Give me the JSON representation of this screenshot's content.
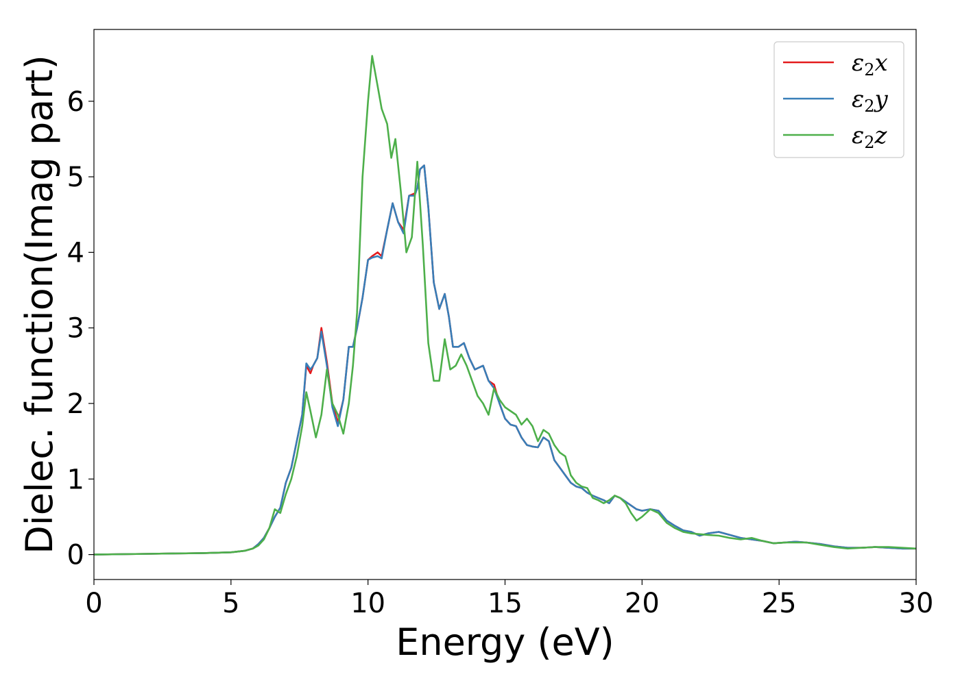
{
  "chart_data": {
    "type": "line",
    "title": "",
    "xlabel": "Energy (eV)",
    "ylabel": "Dielec. function(Imag part)",
    "xlim": [
      0,
      30
    ],
    "ylim": [
      -0.33,
      6.95
    ],
    "xticks": [
      0,
      5,
      10,
      15,
      20,
      25,
      30
    ],
    "yticks": [
      0,
      1,
      2,
      3,
      4,
      5,
      6
    ],
    "grid": false,
    "legend_position": "top-right",
    "series": [
      {
        "name": "ε2x",
        "legend_base": "ε",
        "legend_sub": "2",
        "legend_suffix": "x",
        "color": "#e41a1c",
        "x": [
          0,
          2,
          4,
          5,
          5.5,
          5.8,
          6.0,
          6.2,
          6.4,
          6.6,
          6.8,
          7.0,
          7.2,
          7.4,
          7.6,
          7.75,
          7.9,
          8.0,
          8.15,
          8.3,
          8.5,
          8.7,
          8.9,
          9.1,
          9.3,
          9.45,
          9.6,
          9.8,
          10.0,
          10.15,
          10.35,
          10.5,
          10.7,
          10.9,
          11.1,
          11.3,
          11.5,
          11.7,
          11.8,
          11.9,
          12.05,
          12.2,
          12.4,
          12.6,
          12.8,
          12.95,
          13.1,
          13.3,
          13.5,
          13.7,
          13.9,
          14.2,
          14.4,
          14.6,
          14.8,
          15.0,
          15.2,
          15.4,
          15.6,
          15.8,
          16.0,
          16.2,
          16.4,
          16.6,
          16.8,
          17.0,
          17.2,
          17.4,
          17.6,
          17.8,
          18.0,
          18.2,
          18.4,
          18.6,
          18.8,
          19.0,
          19.2,
          19.4,
          19.6,
          19.8,
          20.0,
          20.3,
          20.6,
          20.9,
          21.2,
          21.5,
          21.8,
          22.1,
          22.4,
          22.8,
          23.2,
          23.6,
          24.0,
          24.4,
          24.8,
          25.2,
          25.6,
          26.0,
          26.5,
          27.0,
          27.5,
          28.0,
          28.5,
          29.0,
          29.5,
          30
        ],
        "y": [
          0.0,
          0.01,
          0.02,
          0.03,
          0.05,
          0.08,
          0.14,
          0.22,
          0.35,
          0.5,
          0.62,
          0.95,
          1.15,
          1.5,
          1.85,
          2.5,
          2.4,
          2.5,
          2.6,
          3.0,
          2.55,
          2.0,
          1.75,
          2.05,
          2.75,
          2.75,
          3.0,
          3.4,
          3.9,
          3.95,
          4.0,
          3.95,
          4.3,
          4.65,
          4.4,
          4.3,
          4.75,
          4.78,
          4.85,
          5.1,
          5.15,
          4.6,
          3.6,
          3.25,
          3.45,
          3.15,
          2.75,
          2.75,
          2.8,
          2.6,
          2.45,
          2.5,
          2.3,
          2.25,
          2.0,
          1.8,
          1.72,
          1.7,
          1.55,
          1.45,
          1.43,
          1.42,
          1.55,
          1.5,
          1.25,
          1.15,
          1.05,
          0.95,
          0.9,
          0.88,
          0.82,
          0.78,
          0.75,
          0.72,
          0.68,
          0.78,
          0.75,
          0.7,
          0.65,
          0.6,
          0.58,
          0.6,
          0.58,
          0.45,
          0.38,
          0.32,
          0.3,
          0.25,
          0.28,
          0.3,
          0.26,
          0.22,
          0.2,
          0.18,
          0.15,
          0.16,
          0.17,
          0.16,
          0.14,
          0.11,
          0.09,
          0.09,
          0.1,
          0.09,
          0.08,
          0.08
        ]
      },
      {
        "name": "ε2y",
        "legend_base": "ε",
        "legend_sub": "2",
        "legend_suffix": "y",
        "color": "#377eb8",
        "x": [
          0,
          2,
          4,
          5,
          5.5,
          5.8,
          6.0,
          6.2,
          6.4,
          6.6,
          6.8,
          7.0,
          7.2,
          7.4,
          7.6,
          7.75,
          7.9,
          8.0,
          8.15,
          8.3,
          8.5,
          8.7,
          8.9,
          9.1,
          9.3,
          9.45,
          9.6,
          9.8,
          10.0,
          10.15,
          10.35,
          10.5,
          10.7,
          10.9,
          11.1,
          11.3,
          11.5,
          11.7,
          11.8,
          11.9,
          12.05,
          12.2,
          12.4,
          12.6,
          12.8,
          12.95,
          13.1,
          13.3,
          13.5,
          13.7,
          13.9,
          14.2,
          14.4,
          14.6,
          14.8,
          15.0,
          15.2,
          15.4,
          15.6,
          15.8,
          16.0,
          16.2,
          16.4,
          16.6,
          16.8,
          17.0,
          17.2,
          17.4,
          17.6,
          17.8,
          18.0,
          18.2,
          18.4,
          18.6,
          18.8,
          19.0,
          19.2,
          19.4,
          19.6,
          19.8,
          20.0,
          20.3,
          20.6,
          20.9,
          21.2,
          21.5,
          21.8,
          22.1,
          22.4,
          22.8,
          23.2,
          23.6,
          24.0,
          24.4,
          24.8,
          25.2,
          25.6,
          26.0,
          26.5,
          27.0,
          27.5,
          28.0,
          28.5,
          29.0,
          29.5,
          30
        ],
        "y": [
          0.0,
          0.01,
          0.02,
          0.03,
          0.05,
          0.08,
          0.14,
          0.22,
          0.35,
          0.5,
          0.62,
          0.95,
          1.15,
          1.5,
          1.85,
          2.53,
          2.45,
          2.5,
          2.6,
          2.95,
          2.5,
          1.95,
          1.7,
          2.05,
          2.75,
          2.75,
          3.0,
          3.4,
          3.9,
          3.93,
          3.95,
          3.92,
          4.3,
          4.65,
          4.4,
          4.25,
          4.75,
          4.75,
          4.85,
          5.1,
          5.15,
          4.6,
          3.6,
          3.25,
          3.45,
          3.15,
          2.75,
          2.75,
          2.8,
          2.6,
          2.45,
          2.5,
          2.3,
          2.2,
          2.0,
          1.8,
          1.72,
          1.7,
          1.55,
          1.45,
          1.43,
          1.42,
          1.55,
          1.5,
          1.25,
          1.15,
          1.05,
          0.95,
          0.9,
          0.88,
          0.82,
          0.78,
          0.75,
          0.72,
          0.68,
          0.78,
          0.75,
          0.7,
          0.65,
          0.6,
          0.58,
          0.6,
          0.58,
          0.45,
          0.38,
          0.32,
          0.3,
          0.25,
          0.28,
          0.3,
          0.26,
          0.22,
          0.2,
          0.18,
          0.15,
          0.16,
          0.17,
          0.16,
          0.14,
          0.11,
          0.09,
          0.09,
          0.1,
          0.09,
          0.08,
          0.08
        ]
      },
      {
        "name": "ε2z",
        "legend_base": "ε",
        "legend_sub": "2",
        "legend_suffix": "z",
        "color": "#4daf4a",
        "x": [
          0,
          2,
          4,
          5,
          5.5,
          5.8,
          6.0,
          6.2,
          6.4,
          6.6,
          6.8,
          7.0,
          7.2,
          7.4,
          7.6,
          7.75,
          7.9,
          8.1,
          8.3,
          8.5,
          8.7,
          8.9,
          9.1,
          9.3,
          9.45,
          9.6,
          9.8,
          10.0,
          10.15,
          10.35,
          10.5,
          10.7,
          10.85,
          11.0,
          11.2,
          11.4,
          11.6,
          11.8,
          12.0,
          12.2,
          12.4,
          12.6,
          12.8,
          13.0,
          13.2,
          13.4,
          13.6,
          13.8,
          14.0,
          14.2,
          14.4,
          14.6,
          14.8,
          15.0,
          15.2,
          15.4,
          15.6,
          15.8,
          16.0,
          16.2,
          16.4,
          16.6,
          16.8,
          17.0,
          17.2,
          17.4,
          17.6,
          17.8,
          18.0,
          18.2,
          18.4,
          18.6,
          18.8,
          19.0,
          19.2,
          19.4,
          19.6,
          19.8,
          20.0,
          20.3,
          20.6,
          20.9,
          21.2,
          21.5,
          21.8,
          22.1,
          22.4,
          22.8,
          23.2,
          23.6,
          24.0,
          24.4,
          24.8,
          25.2,
          25.6,
          26.0,
          26.5,
          27.0,
          27.5,
          28.0,
          28.5,
          29.0,
          29.5,
          30
        ],
        "y": [
          0.0,
          0.01,
          0.02,
          0.03,
          0.05,
          0.08,
          0.12,
          0.2,
          0.35,
          0.6,
          0.55,
          0.8,
          1.0,
          1.3,
          1.7,
          2.15,
          1.9,
          1.55,
          1.85,
          2.45,
          2.0,
          1.85,
          1.6,
          2.0,
          2.5,
          3.2,
          5.0,
          6.0,
          6.6,
          6.2,
          5.9,
          5.7,
          5.25,
          5.5,
          4.8,
          4.0,
          4.2,
          5.2,
          4.1,
          2.8,
          2.3,
          2.3,
          2.85,
          2.45,
          2.5,
          2.65,
          2.5,
          2.3,
          2.1,
          2.0,
          1.85,
          2.2,
          2.05,
          1.95,
          1.9,
          1.85,
          1.72,
          1.8,
          1.7,
          1.5,
          1.65,
          1.6,
          1.45,
          1.35,
          1.3,
          1.05,
          0.95,
          0.9,
          0.88,
          0.75,
          0.72,
          0.68,
          0.72,
          0.78,
          0.75,
          0.68,
          0.55,
          0.45,
          0.5,
          0.6,
          0.55,
          0.42,
          0.35,
          0.3,
          0.28,
          0.27,
          0.26,
          0.25,
          0.22,
          0.2,
          0.22,
          0.18,
          0.15,
          0.16,
          0.16,
          0.16,
          0.13,
          0.1,
          0.08,
          0.09,
          0.1,
          0.1,
          0.09,
          0.08
        ]
      }
    ]
  }
}
